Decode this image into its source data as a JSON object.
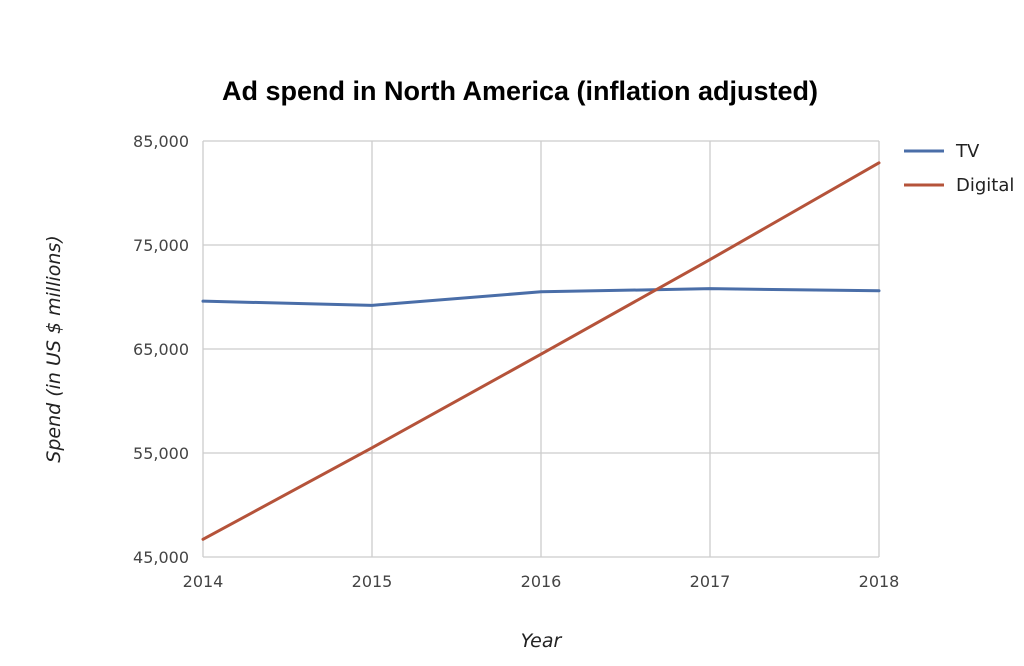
{
  "chart_data": {
    "type": "line",
    "title": "Ad spend in North America (inflation adjusted)",
    "xlabel": "Year",
    "ylabel": "Spend (in US $ millions)",
    "x": [
      "2014",
      "2015",
      "2016",
      "2017",
      "2018"
    ],
    "x_tick_labels": [
      "2014",
      "2015",
      "2016",
      "2017",
      "2018"
    ],
    "y_tick_labels": [
      "45,000",
      "55,000",
      "65,000",
      "75,000",
      "85,000"
    ],
    "y_ticks": [
      45000,
      55000,
      65000,
      75000,
      85000
    ],
    "ylim": [
      45000,
      85000
    ],
    "grid": true,
    "legend_position": "right",
    "series": [
      {
        "name": "TV",
        "color": "#4a6ea8",
        "values": [
          69600,
          69200,
          70500,
          70800,
          70600
        ]
      },
      {
        "name": "Digital",
        "color": "#b5533a",
        "values": [
          46700,
          55500,
          64500,
          73600,
          82900
        ]
      }
    ]
  }
}
